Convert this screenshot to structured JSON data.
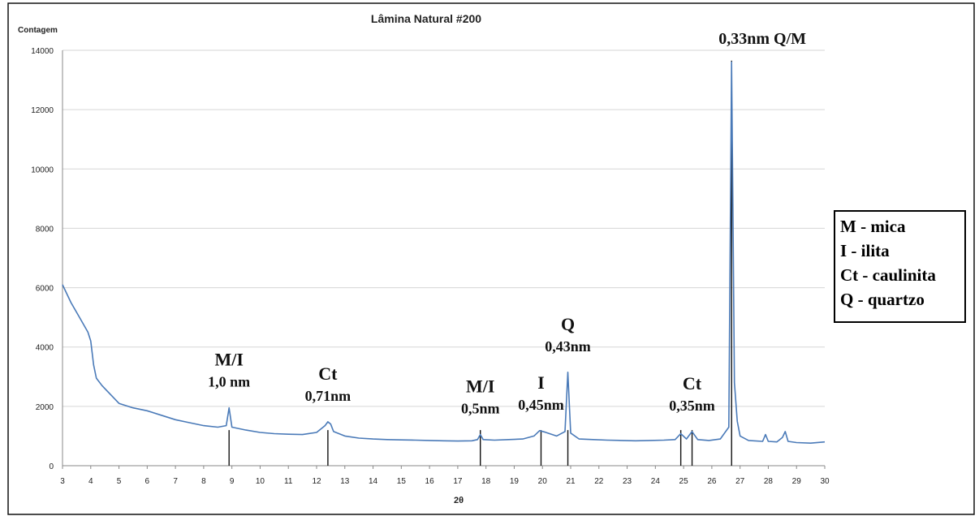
{
  "chart_data": {
    "type": "line",
    "title": "Lâmina Natural #200",
    "xlabel": "2θ",
    "ylabel": "Contagem",
    "xlim": [
      3,
      30
    ],
    "ylim": [
      0,
      14000
    ],
    "grid": true,
    "x_ticks": [
      3,
      4,
      5,
      6,
      7,
      8,
      9,
      10,
      11,
      12,
      13,
      14,
      15,
      16,
      17,
      18,
      19,
      20,
      21,
      22,
      23,
      24,
      25,
      26,
      27,
      28,
      29,
      30
    ],
    "y_ticks": [
      0,
      2000,
      4000,
      6000,
      8000,
      10000,
      12000,
      14000
    ],
    "series_color": "#4a7ab8",
    "series": [
      {
        "x": [
          3,
          3.3,
          3.6,
          3.9,
          4.0,
          4.1,
          4.2,
          4.4,
          4.7,
          5.0,
          5.5,
          6.0,
          6.5,
          7.0,
          7.5,
          8.0,
          8.5,
          8.8,
          8.9,
          9.0,
          9.5,
          10,
          10.5,
          11,
          11.5,
          12,
          12.3,
          12.4,
          12.5,
          12.6,
          13,
          13.5,
          14,
          14.5,
          15,
          15.5,
          16,
          16.5,
          17,
          17.5,
          17.7,
          17.8,
          17.9,
          18.3,
          18.8,
          19.3,
          19.7,
          19.9,
          20.1,
          20.5,
          20.8,
          20.9,
          21.0,
          21.3,
          21.8,
          22.3,
          22.8,
          23.3,
          23.8,
          24.3,
          24.7,
          24.9,
          25.1,
          25.3,
          25.5,
          25.9,
          26.3,
          26.6,
          26.7,
          26.75,
          26.8,
          26.9,
          27.0,
          27.3,
          27.8,
          27.9,
          28.0,
          28.3,
          28.5,
          28.6,
          28.7,
          29.0,
          29.5,
          30
        ],
        "values": [
          6100,
          5500,
          5000,
          4500,
          4200,
          3400,
          2950,
          2700,
          2400,
          2100,
          1950,
          1850,
          1700,
          1550,
          1450,
          1350,
          1300,
          1350,
          1950,
          1300,
          1200,
          1120,
          1080,
          1060,
          1050,
          1120,
          1350,
          1480,
          1400,
          1150,
          1000,
          930,
          900,
          880,
          870,
          860,
          850,
          840,
          830,
          840,
          880,
          1050,
          880,
          860,
          880,
          900,
          1000,
          1180,
          1130,
          1000,
          1150,
          3150,
          1100,
          900,
          880,
          860,
          850,
          840,
          850,
          860,
          880,
          1080,
          900,
          1150,
          880,
          850,
          900,
          1300,
          13600,
          8200,
          2800,
          1500,
          1000,
          850,
          820,
          1050,
          820,
          800,
          950,
          1150,
          820,
          780,
          760,
          800
        ]
      }
    ],
    "annotations": [
      {
        "x": 8.9,
        "y": 1950,
        "lines": [
          "M/I",
          "1,0 nm"
        ]
      },
      {
        "x": 12.4,
        "y": 1480,
        "lines": [
          "Ct",
          "0,71nm"
        ]
      },
      {
        "x": 17.8,
        "y": 1050,
        "lines": [
          "M/I",
          "0,5nm"
        ]
      },
      {
        "x": 19.95,
        "y": 1180,
        "lines": [
          "I",
          "0,45nm"
        ]
      },
      {
        "x": 20.9,
        "y": 3150,
        "lines": [
          "Q",
          "0,43nm"
        ]
      },
      {
        "x": 25.3,
        "y": 1150,
        "lines": [
          "Ct",
          "0,35nm"
        ]
      },
      {
        "x": 26.7,
        "y": 13600,
        "lines": [
          "0,33nm Q/M"
        ]
      }
    ],
    "annotation_markers": [
      8.9,
      12.4,
      17.8,
      19.95,
      20.9,
      24.9,
      25.3,
      26.7
    ]
  },
  "legend": {
    "items": [
      "M - mica",
      "I - ilita",
      "Ct - caulinita",
      "Q - quartzo"
    ]
  }
}
